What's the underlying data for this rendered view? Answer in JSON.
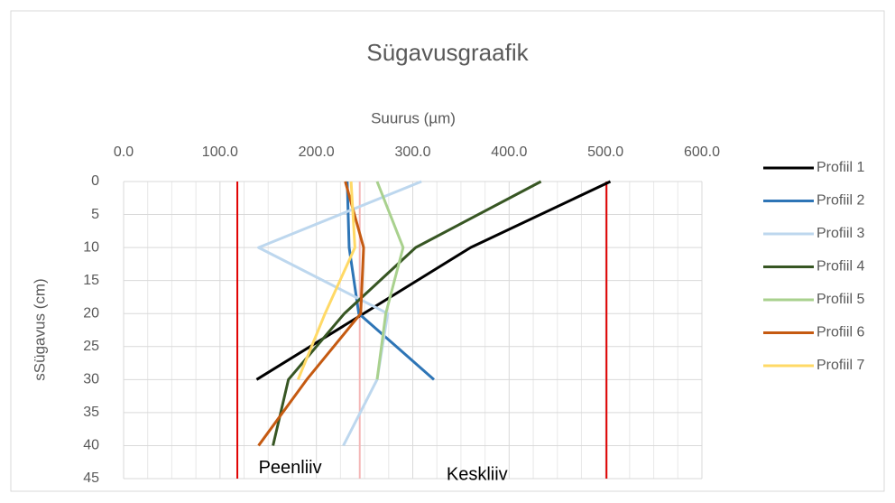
{
  "chart_data": {
    "type": "line",
    "title": "Sügavusgraafik",
    "x_label": "Suurus (µm)",
    "y_label": "sSügavus (cm)",
    "depths": [
      0,
      10,
      20,
      30,
      40
    ],
    "series": [
      {
        "name": "Profiil 1",
        "color": "#000000",
        "values": [
          505,
          360,
          249,
          138,
          null
        ]
      },
      {
        "name": "Profiil 2",
        "color": "#2e75b6",
        "values": [
          232,
          234,
          244,
          322,
          null
        ]
      },
      {
        "name": "Profiil 3",
        "color": "#bdd7ee",
        "values": [
          309,
          140,
          274,
          263,
          228
        ]
      },
      {
        "name": "Profiil 4",
        "color": "#375623",
        "values": [
          433,
          303,
          229,
          171,
          155
        ]
      },
      {
        "name": "Profiil 5",
        "color": "#a9d18e",
        "values": [
          263,
          290,
          272,
          263,
          null
        ]
      },
      {
        "name": "Profiil 6",
        "color": "#c55a11",
        "values": [
          230,
          249,
          246,
          190,
          140
        ]
      },
      {
        "name": "Profiil 7",
        "color": "#ffd966",
        "values": [
          236,
          240,
          209,
          181,
          null
        ]
      }
    ],
    "reference_lines": [
      {
        "value": 118,
        "color": "#e00000"
      },
      {
        "value": 245,
        "color": "#f4b6b6"
      },
      {
        "value": 501,
        "color": "#e00000"
      }
    ],
    "annotations": [
      {
        "text": "Peenliiv",
        "x": 140,
        "y": 44
      },
      {
        "text": "Keskliiv",
        "x": 335,
        "y": 45
      }
    ],
    "xlim": [
      0,
      600
    ],
    "xticks": [
      {
        "value": 0,
        "label": "0.0"
      },
      {
        "value": 100,
        "label": "100.0"
      },
      {
        "value": 200,
        "label": "200.0"
      },
      {
        "value": 300,
        "label": "300.0"
      },
      {
        "value": 400,
        "label": "400.0"
      },
      {
        "value": 500,
        "label": "500.0"
      },
      {
        "value": 600,
        "label": "600.0"
      }
    ],
    "ylim": [
      0,
      45
    ],
    "yticks": [
      0,
      5,
      10,
      15,
      20,
      25,
      30,
      35,
      40,
      45
    ],
    "y_inverted": true,
    "grid": true,
    "legend": "right"
  }
}
